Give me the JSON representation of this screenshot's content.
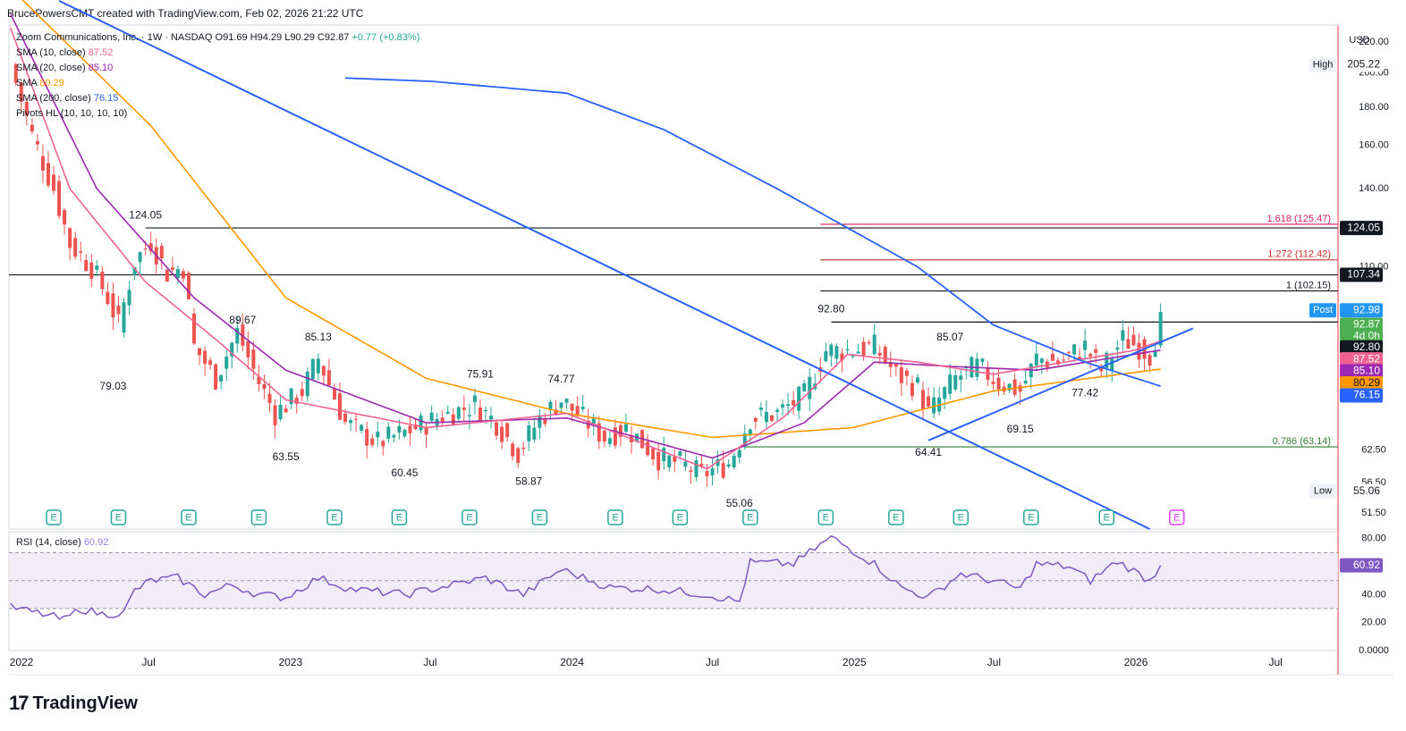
{
  "header": {
    "credit": "BrucePowersCMT created with TradingView.com, Feb 02, 2026 21:22 UTC"
  },
  "legend": {
    "symbol_line": "Zoom Communications, Inc. · 1W · NASDAQ",
    "ohlc": [
      {
        "k": "O",
        "v": "91.69"
      },
      {
        "k": "H",
        "v": "94.29"
      },
      {
        "k": "L",
        "v": "90.29"
      },
      {
        "k": "C",
        "v": "92.87"
      }
    ],
    "change": "+0.77 (+0.83%)",
    "indicators": [
      {
        "label": "SMA (10, close)",
        "value": "87.52",
        "color": "#f06292"
      },
      {
        "label": "SMA (20, close)",
        "value": "85.10",
        "color": "#9c27b0"
      },
      {
        "label": "SMA",
        "value": "80.29",
        "color": "#ff9800"
      },
      {
        "label": "SMA (200, close)",
        "value": "76.15",
        "color": "#2962ff"
      },
      {
        "label": "Pivots HL (10, 10, 10, 10)",
        "value": "",
        "color": "#131722"
      }
    ],
    "rsi_label": "RSI (14, close)",
    "rsi_value": "60.92"
  },
  "footer": {
    "logo_mark": "17",
    "logo_text": "TradingView"
  },
  "chart_data": {
    "type": "candlestick",
    "currency": "USD",
    "interval": "1W",
    "price_scale": "log",
    "y_ticks": [
      "220.00",
      "200.00",
      "180.00",
      "160.00",
      "140.00",
      "110.00",
      "62.50",
      "56.50",
      "51.50"
    ],
    "x_labels": [
      "2022",
      "Jul",
      "2023",
      "Jul",
      "2024",
      "Jul",
      "2025",
      "Jul",
      "2026",
      "Jul"
    ],
    "x_label_dates": [
      "2022-01-01",
      "2022-07-01",
      "2023-01-01",
      "2023-07-01",
      "2024-01-01",
      "2024-07-01",
      "2025-01-01",
      "2025-07-01",
      "2026-01-01",
      "2026-07-01"
    ],
    "x_range": [
      "2022-01-01",
      "2026-09-20"
    ],
    "y_range": [
      49,
      232
    ],
    "last": {
      "open": 91.69,
      "high": 94.29,
      "low": 90.29,
      "close": 92.87,
      "change": "+0.77",
      "change_pct": "+0.83%",
      "time_left": "4d 0h",
      "post": "92.98"
    },
    "price_anchors": [
      [
        "2022-01-03",
        205
      ],
      [
        "2022-01-31",
        165
      ],
      [
        "2022-02-28",
        140
      ],
      [
        "2022-03-21",
        118
      ],
      [
        "2022-04-18",
        110
      ],
      [
        "2022-05-09",
        100
      ],
      [
        "2022-05-23",
        92
      ],
      [
        "2022-06-13",
        112
      ],
      [
        "2022-07-04",
        119
      ],
      [
        "2022-07-25",
        108
      ],
      [
        "2022-08-15",
        110
      ],
      [
        "2022-08-29",
        86
      ],
      [
        "2022-09-26",
        78
      ],
      [
        "2022-10-24",
        90
      ],
      [
        "2022-11-21",
        77
      ],
      [
        "2022-12-12",
        70
      ],
      [
        "2023-01-16",
        75
      ],
      [
        "2023-02-06",
        83
      ],
      [
        "2023-03-13",
        68
      ],
      [
        "2023-04-24",
        64
      ],
      [
        "2023-05-29",
        66
      ],
      [
        "2023-07-10",
        69
      ],
      [
        "2023-08-28",
        72
      ],
      [
        "2023-09-25",
        68
      ],
      [
        "2023-10-23",
        62
      ],
      [
        "2023-11-20",
        69
      ],
      [
        "2023-12-18",
        73
      ],
      [
        "2024-02-12",
        65
      ],
      [
        "2024-03-11",
        67
      ],
      [
        "2024-04-22",
        61
      ],
      [
        "2024-05-20",
        60
      ],
      [
        "2024-06-17",
        58
      ],
      [
        "2024-07-22",
        60
      ],
      [
        "2024-08-19",
        69
      ],
      [
        "2024-09-23",
        70
      ],
      [
        "2024-10-28",
        74
      ],
      [
        "2024-11-25",
        85
      ],
      [
        "2024-12-23",
        85
      ],
      [
        "2025-01-27",
        86
      ],
      [
        "2025-02-24",
        79
      ],
      [
        "2025-03-24",
        76
      ],
      [
        "2025-04-07",
        70
      ],
      [
        "2025-05-12",
        78
      ],
      [
        "2025-06-09",
        81
      ],
      [
        "2025-07-07",
        77
      ],
      [
        "2025-08-04",
        75
      ],
      [
        "2025-08-25",
        83
      ],
      [
        "2025-09-22",
        82
      ],
      [
        "2025-10-27",
        86
      ],
      [
        "2025-11-17",
        80
      ],
      [
        "2025-12-15",
        88
      ],
      [
        "2026-01-05",
        86
      ],
      [
        "2026-01-19",
        84
      ],
      [
        "2026-02-02",
        92.87
      ]
    ],
    "sma_10": [
      [
        "2022-01-03",
        230
      ],
      [
        "2022-03-21",
        140
      ],
      [
        "2022-06-27",
        105
      ],
      [
        "2022-09-26",
        88
      ],
      [
        "2022-12-26",
        73
      ],
      [
        "2023-06-26",
        67
      ],
      [
        "2023-12-25",
        70
      ],
      [
        "2024-06-24",
        59
      ],
      [
        "2024-09-30",
        69
      ],
      [
        "2024-12-23",
        84
      ],
      [
        "2025-03-24",
        82
      ],
      [
        "2025-06-30",
        79
      ],
      [
        "2025-12-29",
        85
      ],
      [
        "2026-02-02",
        87.52
      ]
    ],
    "sma_20": [
      [
        "2022-01-03",
        240
      ],
      [
        "2022-04-25",
        140
      ],
      [
        "2022-08-29",
        100
      ],
      [
        "2022-12-26",
        80
      ],
      [
        "2023-06-26",
        68
      ],
      [
        "2023-12-25",
        69
      ],
      [
        "2024-07-01",
        61
      ],
      [
        "2024-10-28",
        68
      ],
      [
        "2025-01-27",
        82
      ],
      [
        "2025-04-28",
        81
      ],
      [
        "2025-08-25",
        80
      ],
      [
        "2026-02-02",
        85.1
      ]
    ],
    "sma_50": [
      [
        "2022-01-03",
        260
      ],
      [
        "2022-07-04",
        170
      ],
      [
        "2022-12-26",
        100
      ],
      [
        "2023-06-26",
        78
      ],
      [
        "2023-12-25",
        70
      ],
      [
        "2024-07-01",
        65
      ],
      [
        "2024-12-30",
        67
      ],
      [
        "2025-06-30",
        75
      ],
      [
        "2026-02-02",
        80.29
      ]
    ],
    "sma_200": [
      [
        "2023-03-13",
        197
      ],
      [
        "2023-07-03",
        195
      ],
      [
        "2023-12-25",
        188
      ],
      [
        "2024-04-29",
        168
      ],
      [
        "2024-09-23",
        140
      ],
      [
        "2025-03-24",
        110
      ],
      [
        "2025-06-30",
        92
      ],
      [
        "2025-10-27",
        82
      ],
      [
        "2026-02-02",
        76.15
      ]
    ],
    "trendlines": [
      {
        "from": [
          "2022-03-07",
          250
        ],
        "to": [
          "2026-01-19",
          49
        ]
      },
      {
        "from": [
          "2025-04-07",
          64.41
        ],
        "to": [
          "2026-03-16",
          91
        ]
      }
    ],
    "pivots": [
      {
        "date": "2022-06-27",
        "value": "124.05",
        "pos": "above"
      },
      {
        "date": "2022-05-16",
        "value": "79.03",
        "pos": "below"
      },
      {
        "date": "2022-10-31",
        "value": "89.67",
        "pos": "above"
      },
      {
        "date": "2022-12-26",
        "value": "63.55",
        "pos": "below"
      },
      {
        "date": "2023-02-06",
        "value": "85.13",
        "pos": "above"
      },
      {
        "date": "2023-05-29",
        "value": "60.45",
        "pos": "below"
      },
      {
        "date": "2023-09-04",
        "value": "75.91",
        "pos": "above"
      },
      {
        "date": "2023-12-18",
        "value": "74.77",
        "pos": "above"
      },
      {
        "date": "2023-11-06",
        "value": "58.87",
        "pos": "below"
      },
      {
        "date": "2024-08-05",
        "value": "55.06",
        "pos": "below"
      },
      {
        "date": "2024-12-02",
        "value": "92.80",
        "pos": "above"
      },
      {
        "date": "2025-04-07",
        "value": "64.41",
        "pos": "below"
      },
      {
        "date": "2025-05-05",
        "value": "85.07",
        "pos": "above"
      },
      {
        "date": "2025-08-04",
        "value": "69.15",
        "pos": "below"
      },
      {
        "date": "2025-10-27",
        "value": "77.42",
        "pos": "below"
      }
    ],
    "levels": [
      {
        "price": 124.05,
        "from": "2022-06-27",
        "label": "",
        "color": "#131722"
      },
      {
        "price": 107.34,
        "from": "2022-01-01",
        "label": "",
        "color": "#131722"
      },
      {
        "price": 92.8,
        "from": "2024-12-02",
        "label": "",
        "color": "#131722"
      },
      {
        "price": 125.47,
        "from": "2024-11-18",
        "label": "1.618 (125.47)",
        "color": "#d81b60"
      },
      {
        "price": 112.42,
        "from": "2024-11-18",
        "label": "1.272 (112.42)",
        "color": "#d32f2f"
      },
      {
        "price": 102.15,
        "from": "2024-11-18",
        "label": "1 (102.15)",
        "color": "#131722"
      },
      {
        "price": 63.14,
        "from": "2024-08-12",
        "label": "0.786 (63.14)",
        "color": "#2e7d32"
      }
    ],
    "price_labels": [
      {
        "text": "205.22",
        "tag": "High",
        "bg": "#ffffff",
        "fg": "#131722",
        "price": 205.22
      },
      {
        "text": "124.05",
        "tag": "",
        "bg": "#131722",
        "fg": "#ffffff",
        "price": 124.05
      },
      {
        "text": "107.34",
        "tag": "",
        "bg": "#131722",
        "fg": "#ffffff",
        "price": 107.34
      },
      {
        "text": "92.98",
        "tag": "Post",
        "bg": "#2196f3",
        "fg": "#ffffff",
        "price": 96.2
      },
      {
        "text": "92.87",
        "tag": "",
        "bg": "#4caf50",
        "fg": "#ffffff",
        "price": 92.0
      },
      {
        "text": "4d 0h",
        "tag": "",
        "bg": "#4caf50",
        "fg": "#ffffff",
        "price": 88.8
      },
      {
        "text": "92.80",
        "tag": "",
        "bg": "#131722",
        "fg": "#ffffff",
        "price": 85.8
      },
      {
        "text": "87.52",
        "tag": "",
        "bg": "#f06292",
        "fg": "#ffffff",
        "price": 82.7
      },
      {
        "text": "85.10",
        "tag": "",
        "bg": "#9c27b0",
        "fg": "#ffffff",
        "price": 79.7
      },
      {
        "text": "80.29",
        "tag": "",
        "bg": "#ff9800",
        "fg": "#131722",
        "price": 76.8
      },
      {
        "text": "76.15",
        "tag": "",
        "bg": "#2962ff",
        "fg": "#ffffff",
        "price": 74.0
      },
      {
        "text": "55.06",
        "tag": "Low",
        "bg": "#ffffff",
        "fg": "#131722",
        "price": 55.06
      }
    ],
    "earnings_markers": [
      "2022-02-28",
      "2022-05-23",
      "2022-08-22",
      "2022-11-21",
      "2023-02-27",
      "2023-05-22",
      "2023-08-21",
      "2023-11-20",
      "2024-02-26",
      "2024-05-20",
      "2024-08-19",
      "2024-11-25",
      "2025-02-24",
      "2025-05-19",
      "2025-08-18",
      "2025-11-24",
      "2026-02-23"
    ],
    "earnings_letter": "E",
    "rsi": {
      "levels": [
        70,
        50,
        30
      ],
      "ticks": [
        "80.00",
        "40.00",
        "20.00",
        "0.0000"
      ],
      "tick_values": [
        80,
        40,
        20,
        0
      ],
      "range": [
        0,
        85
      ],
      "values": [
        [
          "2022-01-03",
          31
        ],
        [
          "2022-02-14",
          26
        ],
        [
          "2022-03-14",
          22
        ],
        [
          "2022-04-04",
          30
        ],
        [
          "2022-05-02",
          26
        ],
        [
          "2022-05-30",
          27
        ],
        [
          "2022-06-13",
          43
        ],
        [
          "2022-07-04",
          50
        ],
        [
          "2022-08-08",
          52
        ],
        [
          "2022-09-12",
          40
        ],
        [
          "2022-10-17",
          47
        ],
        [
          "2022-11-21",
          40
        ],
        [
          "2022-12-26",
          38
        ],
        [
          "2023-02-06",
          52
        ],
        [
          "2023-03-20",
          44
        ],
        [
          "2023-05-29",
          40
        ],
        [
          "2023-08-07",
          48
        ],
        [
          "2023-09-11",
          52
        ],
        [
          "2023-10-30",
          40
        ],
        [
          "2023-12-18",
          58
        ],
        [
          "2024-02-19",
          45
        ],
        [
          "2024-04-22",
          44
        ],
        [
          "2024-06-24",
          40
        ],
        [
          "2024-08-05",
          35
        ],
        [
          "2024-08-19",
          63
        ],
        [
          "2024-10-14",
          62
        ],
        [
          "2024-12-02",
          81
        ],
        [
          "2025-01-27",
          62
        ],
        [
          "2025-03-03",
          45
        ],
        [
          "2025-04-07",
          38
        ],
        [
          "2025-05-19",
          55
        ],
        [
          "2025-06-30",
          50
        ],
        [
          "2025-08-04",
          44
        ],
        [
          "2025-08-25",
          62
        ],
        [
          "2025-10-06",
          60
        ],
        [
          "2025-11-03",
          50
        ],
        [
          "2025-12-08",
          64
        ],
        [
          "2026-01-19",
          50
        ],
        [
          "2026-02-02",
          60.92
        ]
      ]
    }
  }
}
